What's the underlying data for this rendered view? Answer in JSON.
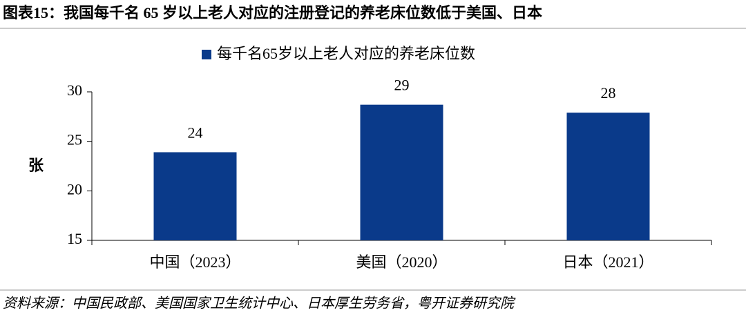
{
  "chart_data": {
    "type": "bar",
    "title": "图表15：我国每千名 65 岁以上老人对应的注册登记的养老床位数低于美国、日本",
    "categories": [
      "中国（2023）",
      "美国（2020）",
      "日本（2021）"
    ],
    "series": [
      {
        "name": "每千名65岁以上老人对应的养老床位数",
        "color": "#0a3a8a",
        "values": [
          23.9,
          28.7,
          27.9
        ],
        "value_labels": [
          "24",
          "29",
          "28"
        ]
      }
    ],
    "y_label": "张",
    "ylim": [
      15,
      30
    ],
    "yticks": [
      15,
      20,
      25,
      30
    ],
    "grid": false,
    "legend": "top",
    "source": "资料来源：中国民政部、美国国家卫生统计中心、日本厚生劳务省，粤开证券研究院"
  }
}
